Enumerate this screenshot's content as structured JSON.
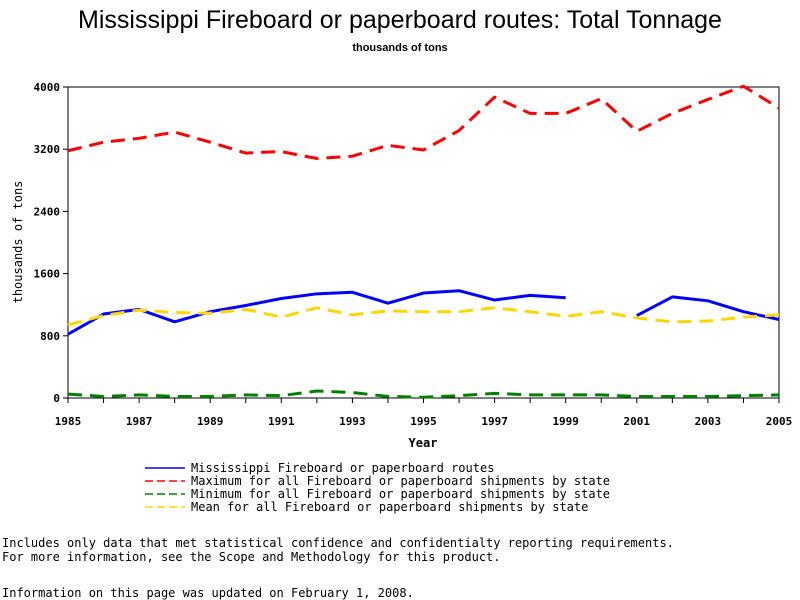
{
  "page": {
    "title": "Mississippi Fireboard or paperboard routes: Total Tonnage",
    "subtitle": "thousands of tons",
    "note_line1": "Includes only data that met statistical confidence and confidentialty reporting requirements.",
    "note_line2": "For more information, see the Scope and Methodology for this product.",
    "updated": "Information on this page was updated on February 1, 2008."
  },
  "chart_data": {
    "type": "line",
    "title": "Mississippi Fireboard or paperboard routes: Total Tonnage",
    "subtitle": "thousands of tons",
    "xlabel": "Year",
    "ylabel": "thousands of tons",
    "xlim": [
      1985,
      2005
    ],
    "ylim": [
      0,
      4000
    ],
    "x_ticks": [
      1985,
      1987,
      1989,
      1991,
      1993,
      1995,
      1997,
      1999,
      2001,
      2003,
      2005
    ],
    "y_ticks": [
      0,
      800,
      1600,
      2400,
      3200,
      4000
    ],
    "legend_position": "bottom",
    "x": [
      1985,
      1986,
      1987,
      1988,
      1989,
      1990,
      1991,
      1992,
      1993,
      1994,
      1995,
      1996,
      1997,
      1998,
      1999,
      2000,
      2001,
      2002,
      2003,
      2004,
      2005
    ],
    "series": [
      {
        "name": "Mississippi Fireboard or paperboard routes",
        "color": "#0000ff",
        "dash": "solid",
        "values": [
          820,
          1080,
          1140,
          980,
          1110,
          1190,
          1280,
          1340,
          1360,
          1220,
          1350,
          1380,
          1260,
          1320,
          1290,
          null,
          1060,
          1300,
          1250,
          1110,
          1010
        ]
      },
      {
        "name": "Maximum for all Fireboard or paperboard shipments by state",
        "color": "#ff0000",
        "dash": "dashed",
        "values": [
          3180,
          3290,
          3340,
          3420,
          3290,
          3150,
          3170,
          3080,
          3110,
          3250,
          3190,
          3440,
          3870,
          3660,
          3660,
          3850,
          3430,
          3660,
          3840,
          4010,
          3730
        ]
      },
      {
        "name": "Minimum for all Fireboard or paperboard shipments by state",
        "color": "#008000",
        "dash": "dashed",
        "values": [
          50,
          20,
          40,
          20,
          20,
          40,
          30,
          90,
          70,
          20,
          10,
          30,
          60,
          40,
          40,
          40,
          20,
          20,
          20,
          30,
          40
        ]
      },
      {
        "name": "Mean for all Fireboard or paperboard shipments by state",
        "color": "#ffd700",
        "dash": "dashed",
        "values": [
          940,
          1060,
          1130,
          1100,
          1090,
          1140,
          1040,
          1160,
          1070,
          1120,
          1110,
          1110,
          1160,
          1110,
          1050,
          1110,
          1030,
          980,
          990,
          1040,
          1070
        ]
      }
    ]
  }
}
